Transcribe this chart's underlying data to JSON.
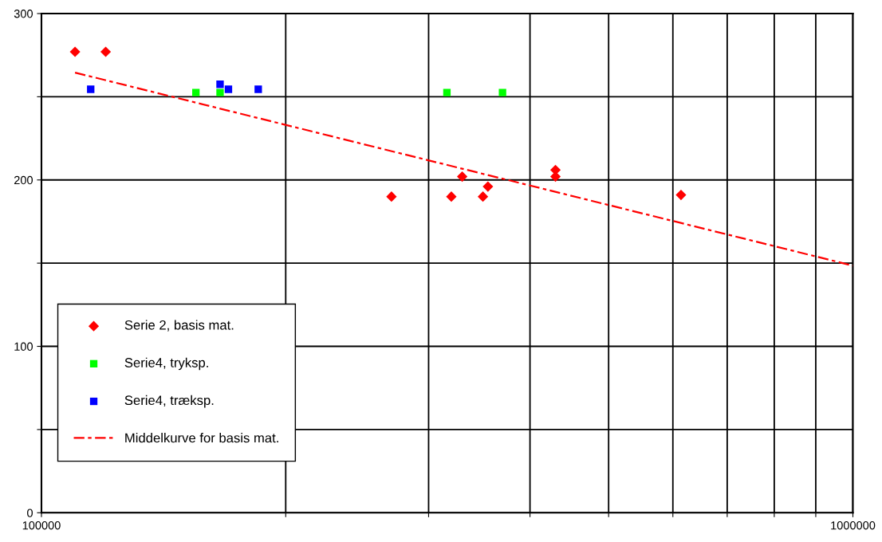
{
  "chart_data": {
    "type": "scatter",
    "log": "x",
    "xlim": [
      100000,
      1000000
    ],
    "xticks": [
      100000,
      {
        "value": 200000,
        "label": null
      },
      {
        "value": 300000,
        "label": null
      },
      {
        "value": 400000,
        "label": null
      },
      {
        "value": 500000,
        "label": null
      },
      {
        "value": 600000,
        "label": null
      },
      {
        "value": 700000,
        "label": null
      },
      {
        "value": 800000,
        "label": null
      },
      {
        "value": 900000,
        "label": null
      },
      1000000
    ],
    "ylim": [
      0,
      300
    ],
    "yticks": [
      0,
      {
        "value": 50,
        "label": null
      },
      100,
      {
        "value": 150,
        "label": null
      },
      200,
      {
        "value": 250,
        "label": null
      },
      300
    ],
    "grid": true,
    "legend": "left",
    "series": [
      {
        "name": "Serie 2, basis mat.",
        "color": "#ff0000",
        "marker": "diamond",
        "x": [
          110000,
          120000,
          270000,
          320000,
          330000,
          350000,
          355000,
          430000,
          430000,
          614000
        ],
        "values": [
          277,
          277,
          190,
          190,
          202,
          190,
          196,
          206,
          202,
          191
        ]
      },
      {
        "name": "Serie4, tryksp.",
        "color": "#00ff00",
        "marker": "square",
        "x": [
          155000,
          166000,
          316000,
          370000
        ],
        "values": [
          252.5,
          252.5,
          252.5,
          252.5
        ]
      },
      {
        "name": "Serie4, træksp.",
        "color": "#0000ff",
        "marker": "square",
        "x": [
          115000,
          166000,
          170000,
          185000
        ],
        "values": [
          254.5,
          257.5,
          254.5,
          254.5
        ]
      },
      {
        "name": "Middelkurve for basis mat.",
        "type": "line",
        "color": "#ff0000",
        "line_style": "dashed",
        "marker": "none",
        "x": [
          110000,
          1000000
        ],
        "values": [
          264.5,
          148.5
        ]
      }
    ]
  }
}
